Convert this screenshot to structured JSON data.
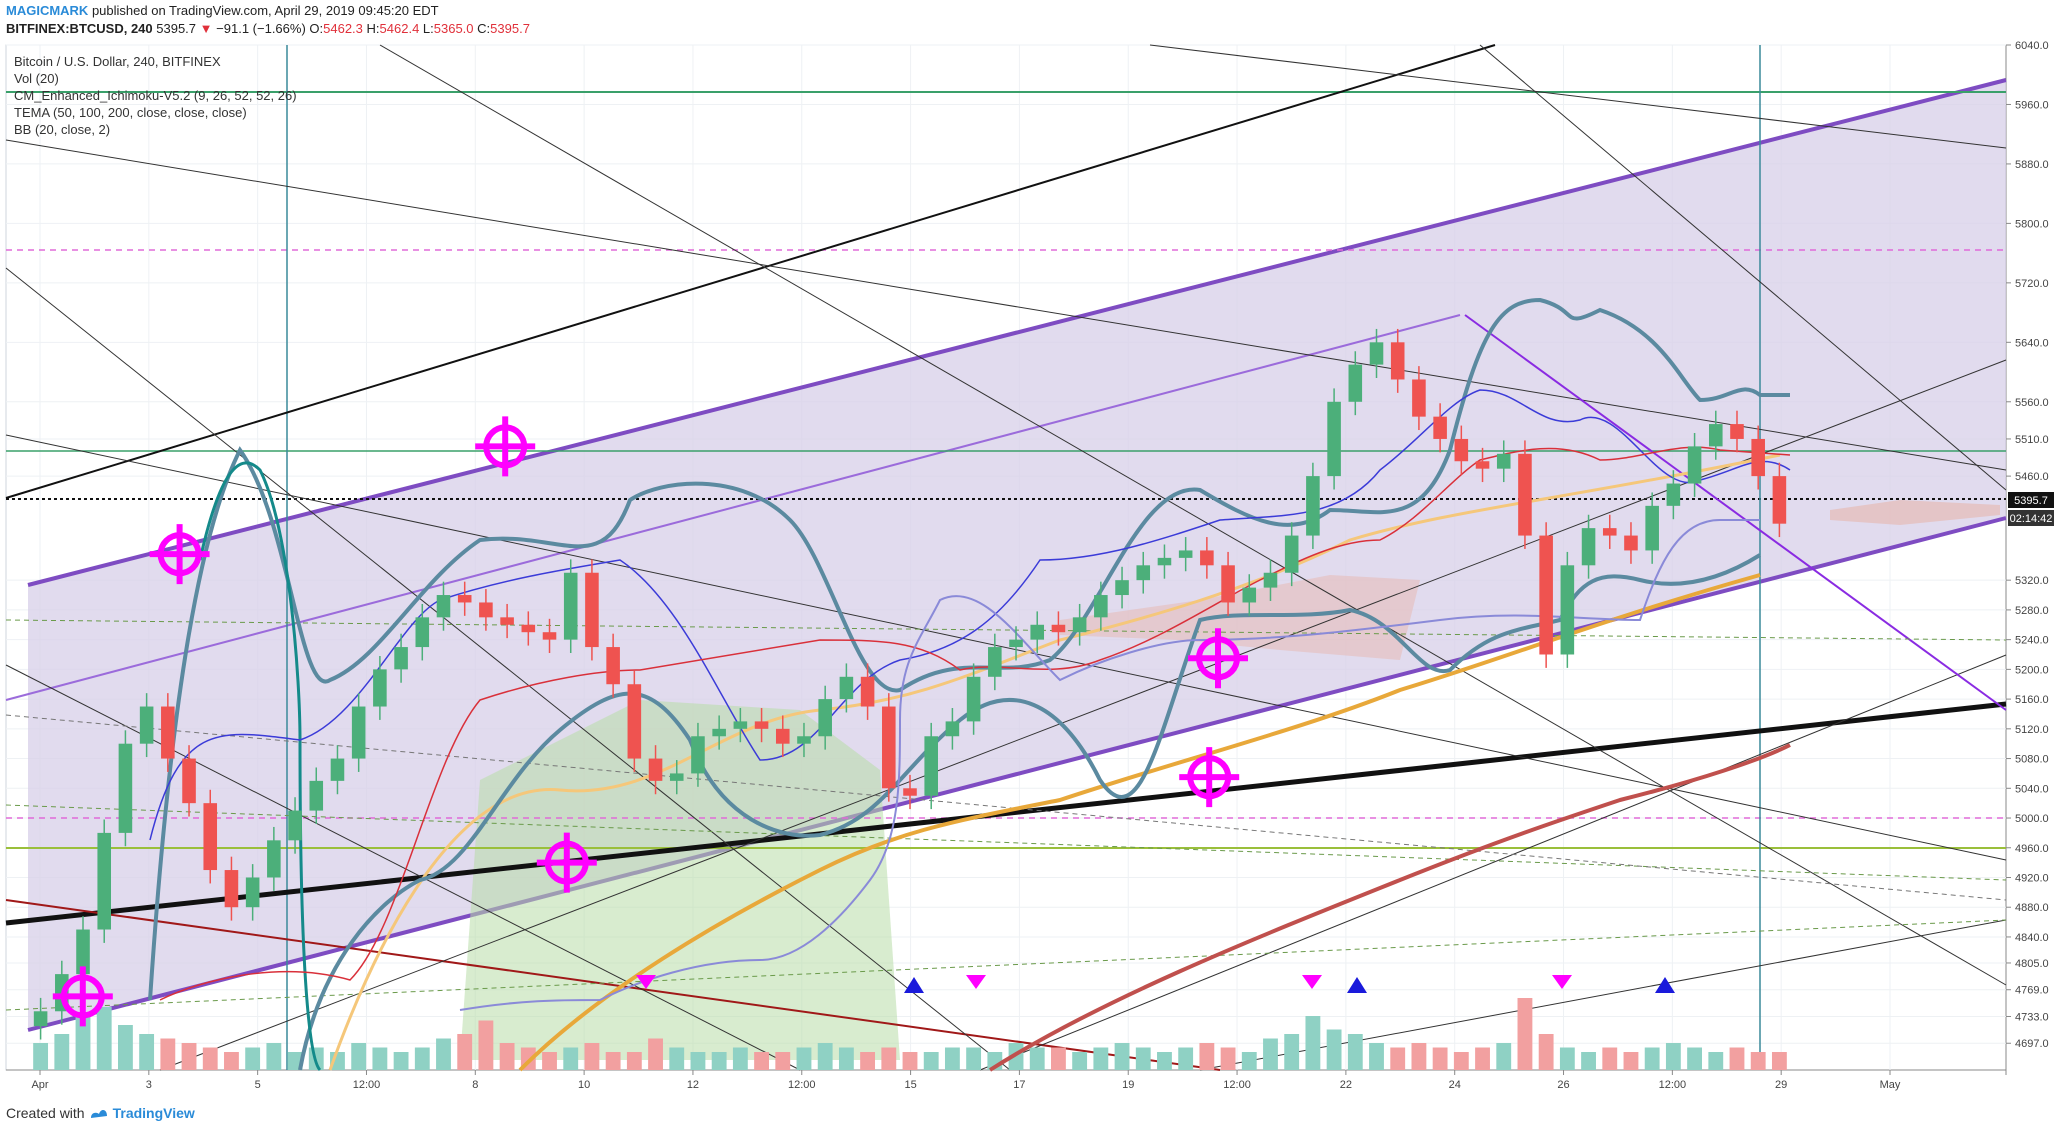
{
  "header": {
    "author": "MAGICMARK",
    "published": "published on TradingView.com, April 29, 2019 09:45:20 EDT",
    "symbol": "BITFINEX:BTCUSD, 240",
    "last": "5395.7",
    "change_arrow": "▼",
    "change": "−91.1 (−1.66%)",
    "open_label": "O:",
    "open": "5462.3",
    "high_label": "H:",
    "high": "5462.4",
    "low_label": "L:",
    "low": "5365.0",
    "close_label": "C:",
    "close": "5395.7"
  },
  "legend": [
    "Bitcoin / U.S. Dollar, 240, BITFINEX",
    "Vol (20)",
    "CM_Enhanced_Ichimoku-V5.2 (9, 26, 52, 52, 26)",
    "TEMA (50, 100, 200, close, close, close)",
    "BB (20, close, 2)"
  ],
  "price_tags": {
    "last_price": "5395.7",
    "countdown": "02:14:42"
  },
  "footer": {
    "created_with": "Created with",
    "brand": "TradingView"
  },
  "colors": {
    "up": "#4caf7a",
    "down": "#ef5350",
    "channel": "#7e4cc2",
    "channel_fill": "#d7cfe8",
    "bb": "#5b8aa0",
    "tema_fast": "#f0c27a",
    "tema_mid": "#e8a83a",
    "tema_slow": "#c0504d",
    "marker": "#ff00ff"
  },
  "chart_data": {
    "type": "candlestick",
    "title": "Bitcoin / U.S. Dollar, 240, BITFINEX",
    "xlabel": "",
    "ylabel": "",
    "ylim": [
      4661,
      6040
    ],
    "y_ticks": [
      6040,
      5960,
      5880,
      5800,
      5720,
      5640,
      5560,
      5510,
      5460,
      5320,
      5280,
      5240,
      5200,
      5160,
      5120,
      5080,
      5040,
      5000,
      4960,
      4920,
      4880,
      4840,
      4805,
      4769,
      4733,
      4697
    ],
    "x_ticks": [
      "Apr",
      "3",
      "5",
      "12:00",
      "8",
      "10",
      "12",
      "12:00",
      "15",
      "17",
      "19",
      "12:00",
      "22",
      "24",
      "26",
      "12:00",
      "29",
      "May"
    ],
    "last_price": 5395.7,
    "series": [
      {
        "name": "BTCUSD close",
        "values": [
          4740,
          4790,
          4850,
          4980,
          5100,
          5150,
          5080,
          5020,
          4930,
          4880,
          4920,
          4970,
          5010,
          5050,
          5080,
          5150,
          5200,
          5230,
          5270,
          5300,
          5290,
          5270,
          5260,
          5250,
          5240,
          5330,
          5230,
          5180,
          5080,
          5050,
          5060,
          5110,
          5120,
          5130,
          5120,
          5100,
          5110,
          5160,
          5190,
          5150,
          5040,
          5030,
          5110,
          5130,
          5190,
          5230,
          5240,
          5260,
          5250,
          5270,
          5300,
          5320,
          5340,
          5350,
          5360,
          5340,
          5290,
          5310,
          5330,
          5380,
          5460,
          5560,
          5610,
          5640,
          5590,
          5540,
          5510,
          5480,
          5470,
          5490,
          5380,
          5220,
          5340,
          5390,
          5380,
          5360,
          5420,
          5450,
          5500,
          5530,
          5510,
          5460,
          5396
        ]
      },
      {
        "name": "Vol",
        "values": [
          30,
          40,
          60,
          70,
          50,
          40,
          35,
          30,
          25,
          20,
          25,
          30,
          20,
          25,
          20,
          30,
          25,
          20,
          25,
          35,
          40,
          55,
          30,
          25,
          20,
          25,
          30,
          20,
          20,
          35,
          25,
          20,
          20,
          25,
          20,
          20,
          25,
          30,
          25,
          20,
          25,
          20,
          20,
          25,
          25,
          20,
          30,
          25,
          25,
          20,
          25,
          30,
          25,
          20,
          25,
          30,
          25,
          20,
          35,
          40,
          60,
          45,
          40,
          30,
          25,
          30,
          25,
          20,
          25,
          30,
          80,
          40,
          25,
          20,
          25,
          20,
          25,
          30,
          25,
          20,
          25,
          20,
          20
        ]
      }
    ]
  }
}
